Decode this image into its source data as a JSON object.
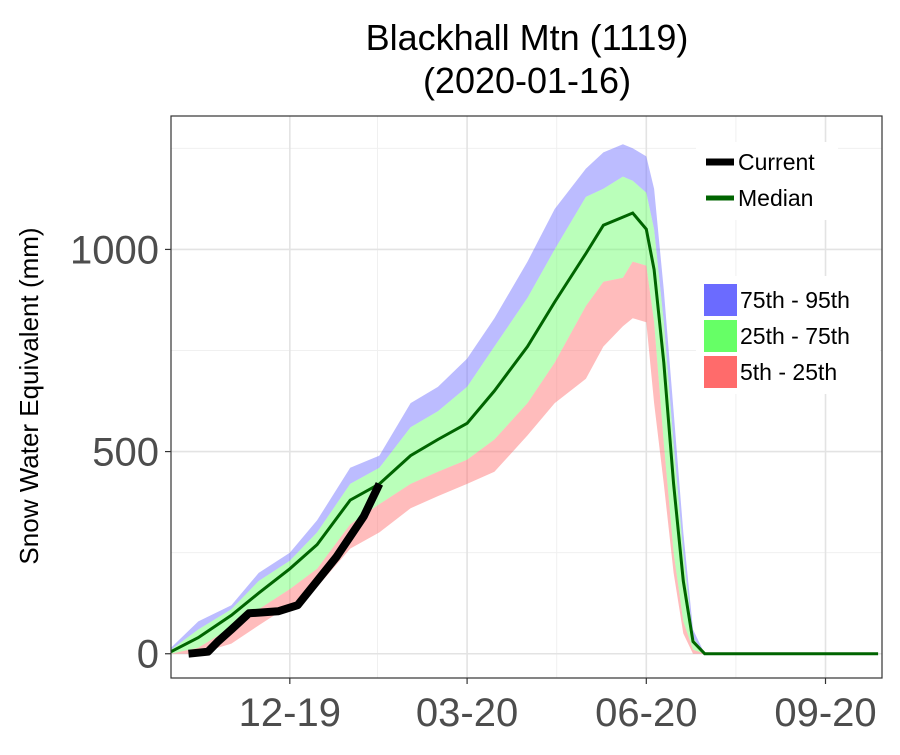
{
  "chart_data": {
    "type": "area",
    "title": "Blackhall Mtn (1119)",
    "subtitle": "(2020-01-16)",
    "ylabel": "Snow Water Equivalent (mm)",
    "xlabel": "",
    "xlim": [
      "2019-10-01",
      "2020-09-30"
    ],
    "ylim": [
      -60,
      1330
    ],
    "x_ticks": [
      {
        "date": "2019-12-01",
        "label": "12-19"
      },
      {
        "date": "2020-03-01",
        "label": "03-20"
      },
      {
        "date": "2020-06-01",
        "label": "06-20"
      },
      {
        "date": "2020-09-01",
        "label": "09-20"
      }
    ],
    "y_ticks": [
      0,
      500,
      1000
    ],
    "grid": true,
    "legend_lines": [
      {
        "name": "Current",
        "color": "#000000"
      },
      {
        "name": "Median",
        "color": "#006400"
      }
    ],
    "legend_bands": [
      {
        "name": "75th - 95th",
        "color": "#6b6bff"
      },
      {
        "name": "25th - 75th",
        "color": "#66ff66"
      },
      {
        "name": "5th - 25th",
        "color": "#ff6b6b"
      }
    ],
    "dates": [
      "2019-10-01",
      "2019-10-15",
      "2019-11-01",
      "2019-11-15",
      "2019-12-01",
      "2019-12-15",
      "2020-01-01",
      "2020-01-16",
      "2020-02-01",
      "2020-02-15",
      "2020-03-01",
      "2020-03-15",
      "2020-04-01",
      "2020-04-15",
      "2020-05-01",
      "2020-05-10",
      "2020-05-20",
      "2020-05-25",
      "2020-06-01",
      "2020-06-05",
      "2020-06-10",
      "2020-06-15",
      "2020-06-20",
      "2020-06-25",
      "2020-07-01",
      "2020-07-05",
      "2020-07-15",
      "2020-08-01",
      "2020-09-01",
      "2020-09-28"
    ],
    "series": [
      {
        "name": "p95",
        "values": [
          15,
          80,
          120,
          200,
          250,
          330,
          460,
          490,
          620,
          660,
          730,
          830,
          970,
          1100,
          1200,
          1240,
          1260,
          1250,
          1230,
          1150,
          900,
          600,
          300,
          60,
          0,
          0,
          0,
          0,
          0,
          0
        ]
      },
      {
        "name": "p75",
        "values": [
          10,
          60,
          110,
          180,
          230,
          300,
          420,
          460,
          560,
          600,
          660,
          760,
          880,
          1000,
          1130,
          1150,
          1180,
          1170,
          1140,
          1050,
          820,
          520,
          250,
          40,
          0,
          0,
          0,
          0,
          0,
          0
        ]
      },
      {
        "name": "median",
        "values": [
          5,
          40,
          95,
          150,
          210,
          270,
          380,
          420,
          490,
          530,
          570,
          650,
          760,
          870,
          990,
          1060,
          1080,
          1090,
          1050,
          950,
          720,
          420,
          180,
          30,
          0,
          0,
          0,
          0,
          0,
          0
        ]
      },
      {
        "name": "p25",
        "values": [
          0,
          15,
          65,
          110,
          160,
          210,
          320,
          370,
          420,
          450,
          480,
          530,
          620,
          720,
          860,
          920,
          930,
          970,
          960,
          820,
          520,
          250,
          80,
          10,
          0,
          0,
          0,
          0,
          0,
          0
        ]
      },
      {
        "name": "p5",
        "values": [
          0,
          0,
          25,
          70,
          120,
          165,
          260,
          300,
          360,
          390,
          420,
          450,
          540,
          620,
          680,
          760,
          810,
          830,
          820,
          620,
          420,
          200,
          50,
          0,
          0,
          0,
          0,
          0,
          0,
          0
        ]
      }
    ],
    "current": {
      "dates": [
        "2019-10-10",
        "2019-10-20",
        "2019-10-25",
        "2019-11-01",
        "2019-11-10",
        "2019-11-25",
        "2019-12-05",
        "2019-12-15",
        "2019-12-25",
        "2020-01-01",
        "2020-01-08",
        "2020-01-16"
      ],
      "values": [
        0,
        5,
        30,
        60,
        100,
        105,
        120,
        180,
        240,
        290,
        340,
        420
      ]
    }
  }
}
